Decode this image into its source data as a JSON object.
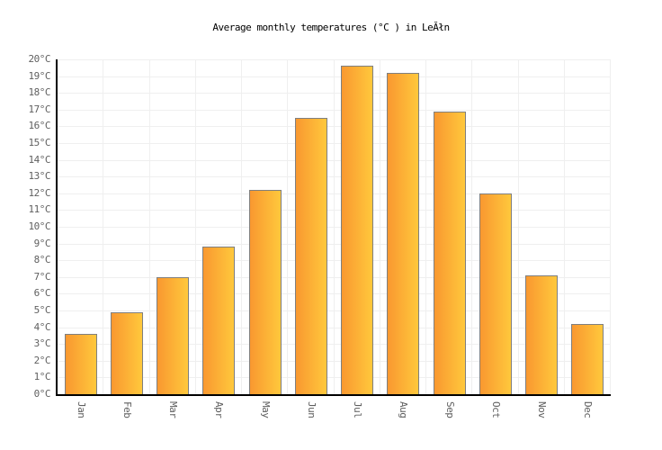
{
  "chart_data": {
    "type": "bar",
    "title": "Average monthly temperatures (°C ) in LeĂłn",
    "categories": [
      "Jan",
      "Feb",
      "Mar",
      "Apr",
      "May",
      "Jun",
      "Jul",
      "Aug",
      "Sep",
      "Oct",
      "Nov",
      "Dec"
    ],
    "values": [
      3.6,
      4.9,
      7.0,
      8.8,
      12.2,
      16.5,
      19.6,
      19.2,
      16.9,
      12.0,
      7.1,
      4.2
    ],
    "xlabel": "",
    "ylabel": "",
    "ylim": [
      0,
      20
    ],
    "ytick_step": 1,
    "ytick_labels": [
      "0°C",
      "1°C",
      "2°C",
      "3°C",
      "4°C",
      "5°C",
      "6°C",
      "7°C",
      "8°C",
      "9°C",
      "10°C",
      "11°C",
      "12°C",
      "13°C",
      "14°C",
      "15°C",
      "16°C",
      "17°C",
      "18°C",
      "19°C",
      "20°C"
    ],
    "grid": true,
    "legend": false,
    "x_tick_rotation_deg": 90
  },
  "colors": {
    "background": "#ffffff",
    "bar_gradient_left": "#f99830",
    "bar_gradient_right": "#ffc83c",
    "bar_border": "#7f7f7f",
    "gridline": "#efefef",
    "axis": "#000000",
    "tick_text": "#5f5f5f",
    "title_text": "#000000"
  }
}
